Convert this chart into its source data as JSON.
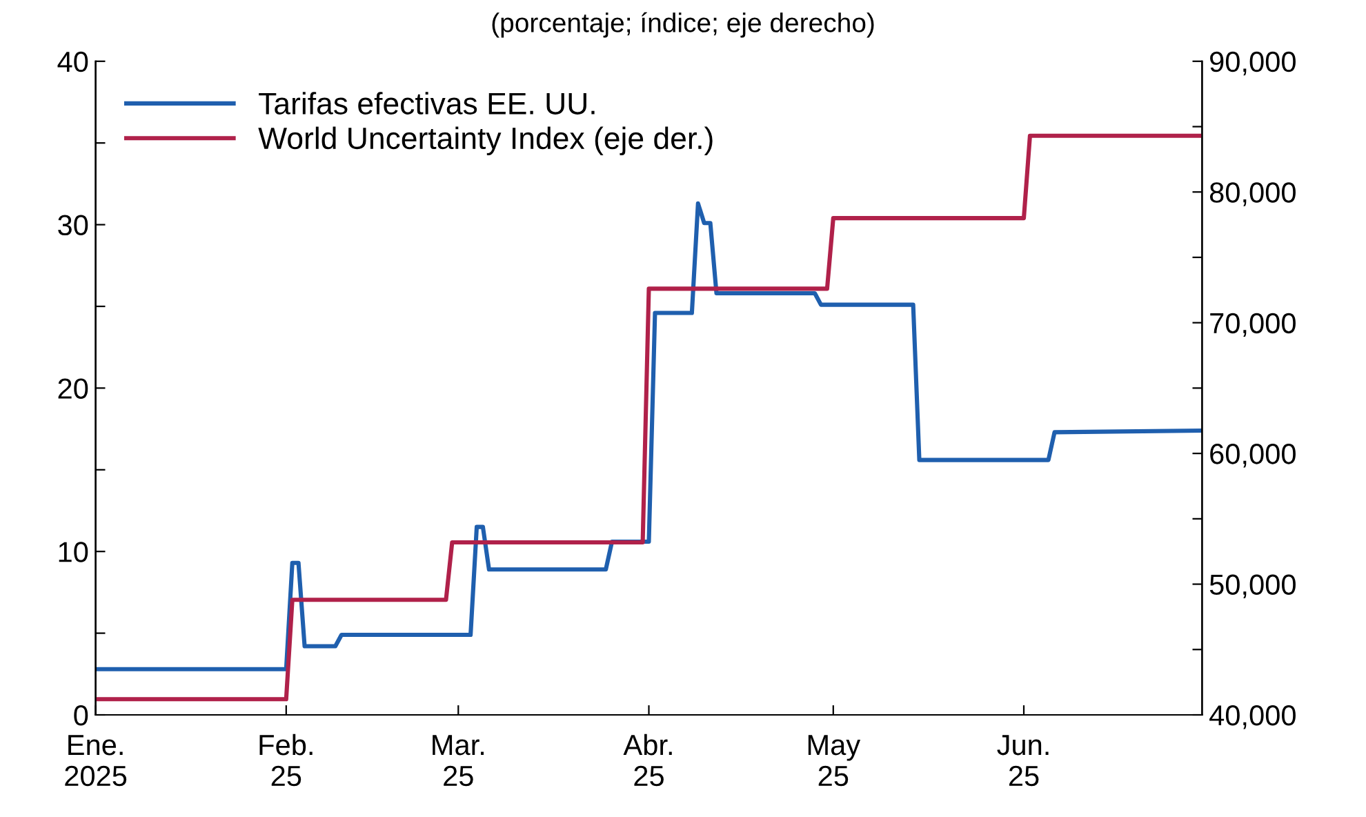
{
  "chart_data": {
    "type": "line",
    "subtitle": "(porcentaje; índice; eje derecho)",
    "xlim": [
      "2025-01-01",
      "2025-06-30"
    ],
    "xticks": [
      {
        "value": "2025-01-01",
        "label": "Ene.\n2025"
      },
      {
        "value": "2025-02-01",
        "label": "Feb.\n25"
      },
      {
        "value": "2025-03-01",
        "label": "Mar.\n25"
      },
      {
        "value": "2025-04-01",
        "label": "Abr.\n25"
      },
      {
        "value": "2025-05-01",
        "label": "May\n25"
      },
      {
        "value": "2025-06-01",
        "label": "Jun.\n25"
      }
    ],
    "ylim": [
      0,
      40
    ],
    "yticks": [
      0,
      {
        "value": 5,
        "label": null
      },
      10,
      {
        "value": 15,
        "label": null
      },
      20,
      {
        "value": 25,
        "label": null
      },
      30,
      {
        "value": 35,
        "label": null
      },
      40
    ],
    "y2lim": [
      40000,
      90000
    ],
    "y2ticks": [
      {
        "value": 40000,
        "label": "40,000"
      },
      {
        "value": 45000,
        "label": null
      },
      {
        "value": 50000,
        "label": "50,000"
      },
      {
        "value": 55000,
        "label": null
      },
      {
        "value": 60000,
        "label": "60,000"
      },
      {
        "value": 65000,
        "label": null
      },
      {
        "value": 70000,
        "label": "70,000"
      },
      {
        "value": 75000,
        "label": null
      },
      {
        "value": 80000,
        "label": "80,000"
      },
      {
        "value": 85000,
        "label": null
      },
      {
        "value": 90000,
        "label": "90,000"
      }
    ],
    "grid": false,
    "legend": "top left",
    "marker": "none",
    "line_style": "solid",
    "series": [
      {
        "name": "Tarifas efectivas EE. UU.",
        "color": "#1f5fae",
        "x": [
          "2025-01-01",
          "2025-02-01",
          "2025-02-02",
          "2025-02-03",
          "2025-02-04",
          "2025-02-09",
          "2025-02-10",
          "2025-03-03",
          "2025-03-04",
          "2025-03-05",
          "2025-03-06",
          "2025-03-25",
          "2025-03-26",
          "2025-04-01",
          "2025-04-02",
          "2025-04-08",
          "2025-04-09",
          "2025-04-10",
          "2025-04-11",
          "2025-04-12",
          "2025-04-28",
          "2025-04-29",
          "2025-05-14",
          "2025-05-15",
          "2025-06-05",
          "2025-06-06",
          "2025-06-30"
        ],
        "values": [
          2.8,
          2.8,
          9.3,
          9.3,
          4.2,
          4.2,
          4.9,
          4.9,
          11.5,
          11.5,
          8.9,
          8.9,
          10.6,
          10.6,
          24.6,
          24.6,
          31.3,
          30.1,
          30.1,
          25.8,
          25.8,
          25.1,
          25.1,
          15.6,
          15.6,
          17.3,
          17.4
        ]
      },
      {
        "name": "World Uncertainty Index (eje der.)",
        "color": "#b0214a",
        "axis": "y2",
        "x": [
          "2025-01-01",
          "2025-02-01",
          "2025-02-02",
          "2025-02-27",
          "2025-02-28",
          "2025-03-31",
          "2025-04-01",
          "2025-04-30",
          "2025-05-01",
          "2025-06-01",
          "2025-06-02",
          "2025-06-30"
        ],
        "values": [
          41200,
          41200,
          48800,
          48800,
          53200,
          53200,
          72600,
          72600,
          78000,
          78000,
          84300,
          84300
        ]
      }
    ]
  }
}
